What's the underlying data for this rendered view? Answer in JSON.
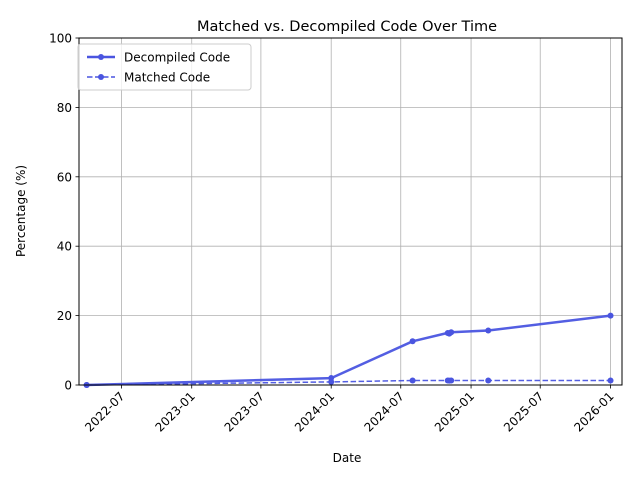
{
  "chart_data": {
    "type": "line",
    "title": "Matched vs. Decompiled Code Over Time",
    "xlabel": "Date",
    "ylabel": "Percentage (%)",
    "xlim": [
      "2022-03-12",
      "2026-01-31"
    ],
    "ylim": [
      0,
      100
    ],
    "xticks": [
      "2022-07",
      "2023-01",
      "2023-07",
      "2024-01",
      "2024-07",
      "2025-01",
      "2025-07",
      "2026-01"
    ],
    "yticks": [
      0,
      20,
      40,
      60,
      80,
      100
    ],
    "grid": true,
    "legend_position": "upper-left",
    "series": [
      {
        "name": "Decompiled Code",
        "color": "#4a55e0",
        "style": "solid",
        "points": [
          {
            "x": "2022-04-01",
            "y": 0.0
          },
          {
            "x": "2024-01-01",
            "y": 2.0
          },
          {
            "x": "2024-08-01",
            "y": 12.6
          },
          {
            "x": "2024-11-01",
            "y": 15.0
          },
          {
            "x": "2024-11-05",
            "y": 14.8
          },
          {
            "x": "2024-11-10",
            "y": 15.2
          },
          {
            "x": "2025-02-15",
            "y": 15.7
          },
          {
            "x": "2026-01-01",
            "y": 20.0
          }
        ]
      },
      {
        "name": "Matched Code",
        "color": "#4a55e0",
        "style": "dashed",
        "points": [
          {
            "x": "2022-04-01",
            "y": 0.0
          },
          {
            "x": "2024-01-01",
            "y": 0.9
          },
          {
            "x": "2024-08-01",
            "y": 1.3
          },
          {
            "x": "2024-11-01",
            "y": 1.3
          },
          {
            "x": "2024-11-05",
            "y": 1.25
          },
          {
            "x": "2024-11-10",
            "y": 1.3
          },
          {
            "x": "2025-02-15",
            "y": 1.3
          },
          {
            "x": "2026-01-01",
            "y": 1.3
          }
        ]
      }
    ]
  }
}
